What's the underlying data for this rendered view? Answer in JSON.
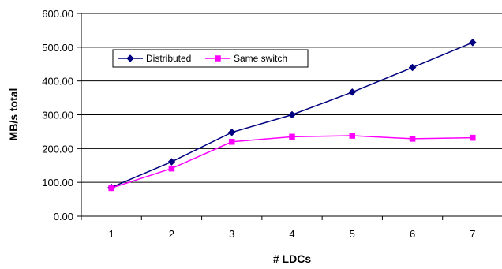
{
  "chart_data": {
    "type": "line",
    "xlabel": "# LDCs",
    "ylabel": "MB/s total",
    "x": [
      1,
      2,
      3,
      4,
      5,
      6,
      7
    ],
    "ylim": [
      0,
      600
    ],
    "ytick_labels": [
      "0.00",
      "100.00",
      "200.00",
      "300.00",
      "400.00",
      "500.00",
      "600.00"
    ],
    "xtick_labels": [
      "1",
      "2",
      "3",
      "4",
      "5",
      "6",
      "7"
    ],
    "grid": "horizontal",
    "legend_position": "top-left inside",
    "series": [
      {
        "name": "Distributed",
        "color": "#000080",
        "marker": "diamond",
        "values": [
          85,
          161,
          248,
          300,
          367,
          440,
          514
        ]
      },
      {
        "name": "Same switch",
        "color": "#ff00ff",
        "marker": "square",
        "values": [
          83,
          141,
          220,
          235,
          238,
          229,
          232
        ]
      }
    ]
  }
}
